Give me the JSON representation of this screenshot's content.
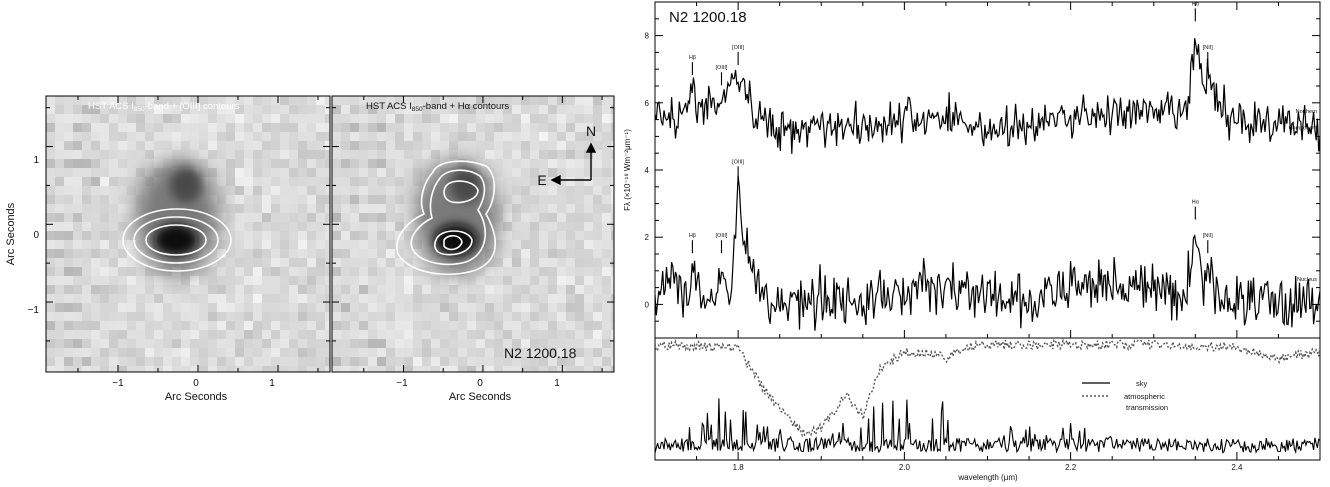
{
  "left_figure": {
    "ylabel": "Arc Seconds",
    "panels": [
      {
        "title": "HST ACS I",
        "title_sub": "850",
        "title_rest": "-band + [OIII] contours",
        "xlabel": "Arc Seconds",
        "x_ticks": [
          "−1",
          "0",
          "1"
        ],
        "y_ticks": [
          "1",
          "0",
          "−1"
        ],
        "xlim": [
          -1.9,
          1.65
        ],
        "ylim": [
          -1.9,
          1.65
        ]
      },
      {
        "title": "HST ACS I",
        "title_sub": "850",
        "title_rest": "-band + Hα contours",
        "xlabel": "Arc Seconds",
        "x_ticks": [
          "−1",
          "0",
          "1"
        ],
        "object_label": "N2 1200.18",
        "compass_north": "N",
        "compass_east": "E",
        "xlim": [
          -1.9,
          1.65
        ],
        "ylim": [
          -1.9,
          1.65
        ]
      }
    ]
  },
  "spectrum_figure": {
    "object_label": "N2 1200.18",
    "ylabel": "Fλ (×10⁻¹⁸ Wm⁻²μm⁻¹)",
    "xlabel": "wavelength (μm)",
    "y_ticks": [
      "8",
      "6",
      "4",
      "2",
      "0"
    ],
    "x_ticks": [
      "1.8",
      "2.0",
      "2.2",
      "2.4"
    ],
    "xlim": [
      1.7,
      2.5
    ],
    "ylim": [
      -1.0,
      9.0
    ],
    "component_labels": [
      {
        "text": "Northern",
        "y": 5.7
      },
      {
        "text": "Component",
        "y": 5.2
      },
      {
        "text": "Nucleus",
        "y": 0.7
      }
    ],
    "lines_upper": [
      {
        "label": "Hα",
        "x": 2.35,
        "y": 8.9
      },
      {
        "label": "[NII]",
        "x": 2.365,
        "y": 7.6
      },
      {
        "label": "Hβ",
        "x": 1.745,
        "y": 7.3
      },
      {
        "label": "[OIII]",
        "x": 1.78,
        "y": 7.0
      },
      {
        "label": "[OIII]",
        "x": 1.8,
        "y": 7.6
      }
    ],
    "lines_lower": [
      {
        "label": "[OIII]",
        "x": 1.8,
        "y": 4.2
      },
      {
        "label": "Hα",
        "x": 2.35,
        "y": 3.0
      },
      {
        "label": "[NII]",
        "x": 2.365,
        "y": 2.0
      },
      {
        "label": "Hβ",
        "x": 1.745,
        "y": 2.0
      },
      {
        "label": "[OIII]",
        "x": 1.78,
        "y": 2.0
      }
    ],
    "legend": [
      {
        "style": "solid",
        "label": "sky"
      },
      {
        "style": "dotted",
        "label": "atmospheric"
      },
      {
        "style": "none",
        "label": "transmission"
      }
    ]
  },
  "chart_data": [
    {
      "type": "line",
      "ylabel": "Fλ (×10⁻¹⁸ Wm⁻²μm⁻¹)",
      "xlabel": "",
      "xlim": [
        1.7,
        2.5
      ],
      "ylim": [
        -1.0,
        9.0
      ],
      "x": [
        1.7,
        1.72,
        1.74,
        1.745,
        1.76,
        1.78,
        1.79,
        1.8,
        1.82,
        1.85,
        1.9,
        1.95,
        2.0,
        2.05,
        2.1,
        2.15,
        2.2,
        2.25,
        2.3,
        2.34,
        2.35,
        2.36,
        2.365,
        2.38,
        2.4,
        2.45,
        2.5
      ],
      "series": [
        {
          "name": "Northern Component",
          "values": [
            5.9,
            5.6,
            5.7,
            6.3,
            5.8,
            6.0,
            6.5,
            6.8,
            5.6,
            5.2,
            5.4,
            5.3,
            5.5,
            5.6,
            5.2,
            5.3,
            5.6,
            5.7,
            5.6,
            5.8,
            7.9,
            6.2,
            6.9,
            5.8,
            5.5,
            5.4,
            5.2
          ]
        },
        {
          "name": "Nucleus",
          "values": [
            0.4,
            0.8,
            0.3,
            1.0,
            0.2,
            0.9,
            0.1,
            3.2,
            0.5,
            0.0,
            0.3,
            0.0,
            0.4,
            0.6,
            0.2,
            0.0,
            0.5,
            0.7,
            0.4,
            0.3,
            2.2,
            0.6,
            1.0,
            0.0,
            0.2,
            0.1,
            0.0
          ]
        }
      ]
    },
    {
      "type": "line",
      "xlabel": "wavelength (μm)",
      "xlim": [
        1.7,
        2.5
      ],
      "x": [
        1.7,
        1.75,
        1.8,
        1.82,
        1.85,
        1.88,
        1.9,
        1.93,
        1.95,
        1.97,
        2.0,
        2.03,
        2.05,
        2.08,
        2.1,
        2.2,
        2.3,
        2.4,
        2.45,
        2.5
      ],
      "series": [
        {
          "name": "sky",
          "values": [
            0.05,
            0.35,
            0.85,
            0.45,
            0.25,
            0.1,
            0.2,
            0.35,
            0.45,
            0.5,
            0.75,
            0.6,
            0.8,
            0.5,
            0.3,
            0.3,
            0.15,
            0.1,
            0.15,
            0.2
          ]
        },
        {
          "name": "atmospheric transmission",
          "values": [
            0.95,
            0.95,
            0.93,
            0.7,
            0.4,
            0.2,
            0.25,
            0.55,
            0.35,
            0.75,
            0.9,
            0.88,
            0.85,
            0.95,
            0.96,
            0.96,
            0.96,
            0.94,
            0.85,
            0.9
          ]
        }
      ]
    }
  ]
}
